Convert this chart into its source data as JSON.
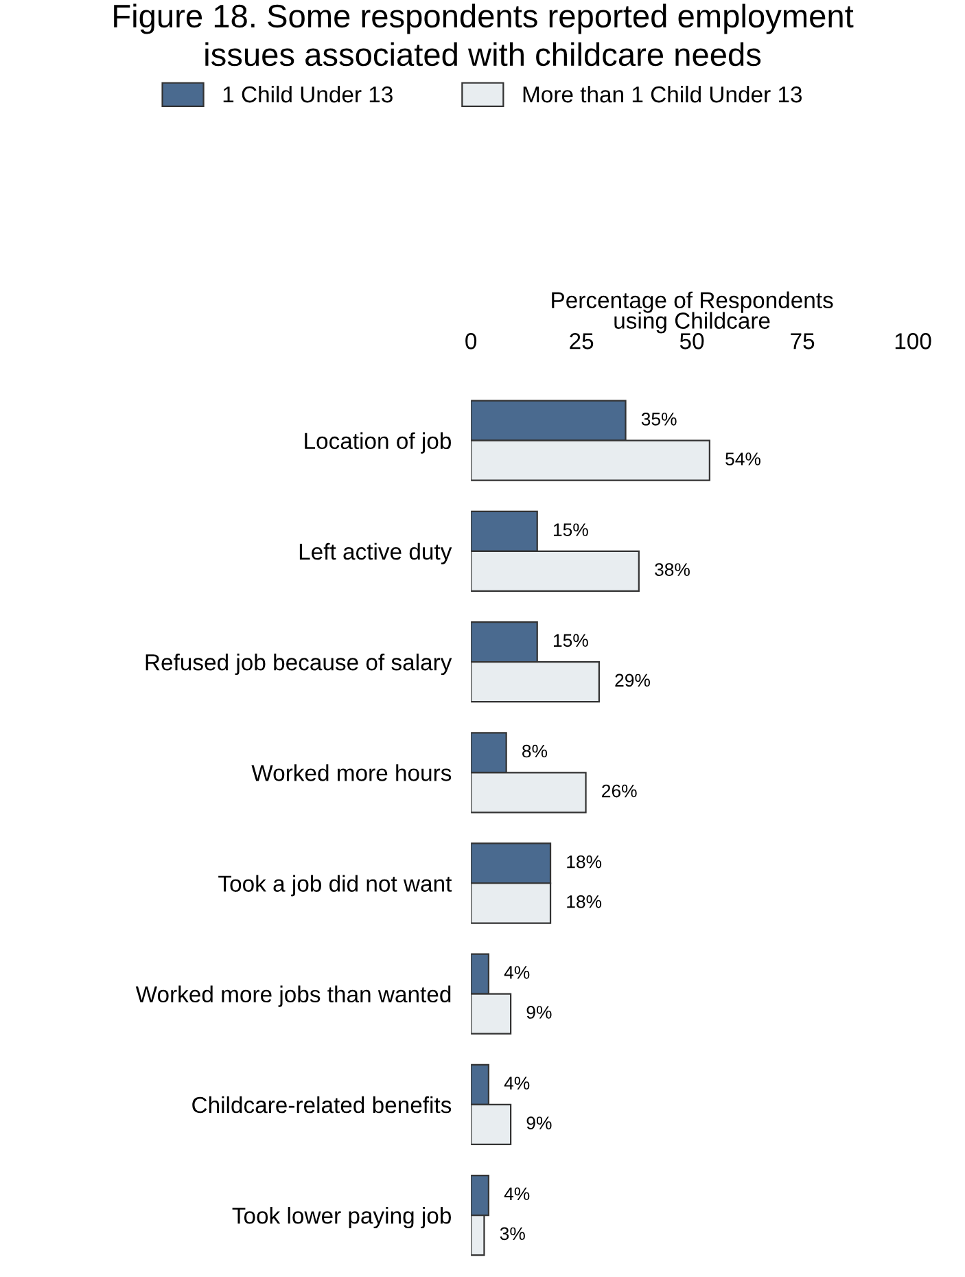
{
  "chart_data": {
    "type": "bar",
    "orientation": "horizontal",
    "title": "Figure 18. Some respondents reported employment\nissues associated with childcare needs",
    "xlabel": "Percentage of Respondents\nusing Childcare",
    "categories": [
      "Location of job",
      "Left active duty",
      "Refused job because of salary",
      "Worked more hours",
      "Took a job did not want",
      "Worked more jobs than wanted",
      "Childcare-related benefits",
      "Took lower paying job"
    ],
    "series": [
      {
        "name": "1 Child Under 13",
        "color": "#4a6a8f",
        "values": [
          35,
          15,
          15,
          8,
          18,
          4,
          4,
          4
        ],
        "value_labels": [
          "35%",
          "15%",
          "15%",
          "8%",
          "18%",
          "4%",
          "4%",
          "4%"
        ]
      },
      {
        "name": "More than 1 Child Under 13",
        "color": "#e8edf0",
        "values": [
          54,
          38,
          29,
          26,
          18,
          9,
          9,
          3
        ],
        "value_labels": [
          "54%",
          "38%",
          "29%",
          "26%",
          "18%",
          "9%",
          "9%",
          "3%"
        ]
      }
    ],
    "xlim": [
      0,
      100
    ],
    "xticks": [
      0,
      25,
      50,
      75,
      100
    ],
    "grid": false,
    "legend": "top"
  }
}
